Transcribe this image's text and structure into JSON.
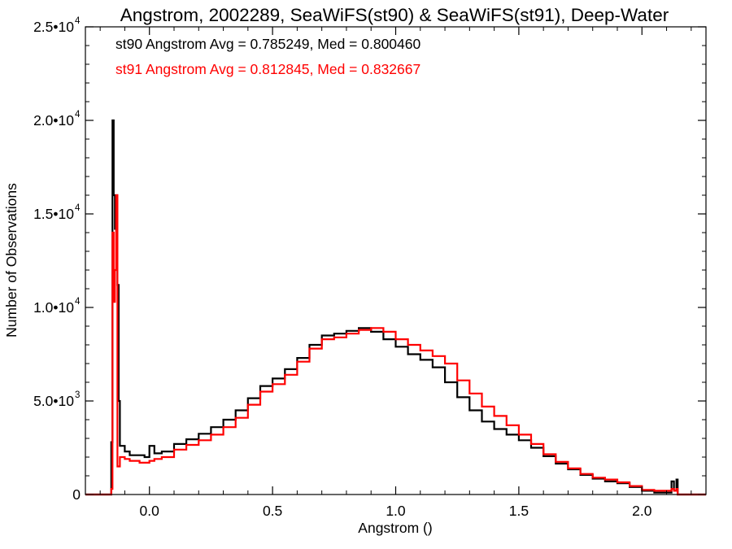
{
  "chart_data": {
    "type": "histogram",
    "title": "Angstrom, 2002289, SeaWiFS(st90) & SeaWiFS(st91), Deep-Water",
    "xlabel": "Angstrom ()",
    "ylabel": "Number of Observations",
    "xlim": [
      -0.26,
      2.26
    ],
    "ylim": [
      0,
      25000
    ],
    "x_ticks": [
      {
        "value": 0.0,
        "label": "0.0"
      },
      {
        "value": 0.5,
        "label": "0.5"
      },
      {
        "value": 1.0,
        "label": "1.0"
      },
      {
        "value": 1.5,
        "label": "1.5"
      },
      {
        "value": 2.0,
        "label": "2.0"
      }
    ],
    "y_ticks": [
      {
        "value": 0,
        "mant": "0",
        "exp": ""
      },
      {
        "value": 5000,
        "mant": "5.0•10",
        "exp": "3"
      },
      {
        "value": 10000,
        "mant": "1.0•10",
        "exp": "4"
      },
      {
        "value": 15000,
        "mant": "1.5•10",
        "exp": "4"
      },
      {
        "value": 20000,
        "mant": "2.0•10",
        "exp": "4"
      },
      {
        "value": 25000,
        "mant": "2.5•10",
        "exp": "4"
      }
    ],
    "x_minor_step": 0.1,
    "y_minor_step": 1000,
    "annotations": [
      {
        "text": "st90 Angstrom Avg = 0.785249, Med = 0.800460",
        "color": "#000000"
      },
      {
        "text": "st91 Angstrom Avg = 0.812845, Med = 0.832667",
        "color": "#ff0000"
      }
    ],
    "series": [
      {
        "color": "#000000",
        "points": [
          [
            -0.26,
            0
          ],
          [
            -0.16,
            0
          ],
          [
            -0.155,
            2800
          ],
          [
            -0.15,
            20000
          ],
          [
            -0.145,
            16000
          ],
          [
            -0.14,
            14200
          ],
          [
            -0.135,
            16000
          ],
          [
            -0.13,
            11200
          ],
          [
            -0.125,
            5000
          ],
          [
            -0.12,
            2600
          ],
          [
            -0.1,
            2300
          ],
          [
            -0.08,
            2100
          ],
          [
            -0.04,
            2100
          ],
          [
            -0.02,
            2000
          ],
          [
            0.0,
            2600
          ],
          [
            0.02,
            2200
          ],
          [
            0.05,
            2300
          ],
          [
            0.1,
            2700
          ],
          [
            0.15,
            2950
          ],
          [
            0.2,
            3250
          ],
          [
            0.25,
            3600
          ],
          [
            0.3,
            4000
          ],
          [
            0.35,
            4500
          ],
          [
            0.4,
            5150
          ],
          [
            0.45,
            5800
          ],
          [
            0.5,
            6200
          ],
          [
            0.55,
            6700
          ],
          [
            0.6,
            7300
          ],
          [
            0.65,
            8000
          ],
          [
            0.7,
            8500
          ],
          [
            0.75,
            8600
          ],
          [
            0.8,
            8750
          ],
          [
            0.85,
            8900
          ],
          [
            0.9,
            8700
          ],
          [
            0.95,
            8300
          ],
          [
            1.0,
            7900
          ],
          [
            1.05,
            7500
          ],
          [
            1.1,
            7200
          ],
          [
            1.15,
            6800
          ],
          [
            1.2,
            6000
          ],
          [
            1.25,
            5200
          ],
          [
            1.3,
            4500
          ],
          [
            1.35,
            3900
          ],
          [
            1.4,
            3500
          ],
          [
            1.45,
            3200
          ],
          [
            1.5,
            2900
          ],
          [
            1.55,
            2500
          ],
          [
            1.6,
            2050
          ],
          [
            1.65,
            1650
          ],
          [
            1.7,
            1350
          ],
          [
            1.75,
            1050
          ],
          [
            1.8,
            850
          ],
          [
            1.85,
            700
          ],
          [
            1.9,
            600
          ],
          [
            1.95,
            400
          ],
          [
            2.0,
            200
          ],
          [
            2.05,
            100
          ],
          [
            2.1,
            100
          ],
          [
            2.12,
            700
          ],
          [
            2.13,
            200
          ],
          [
            2.14,
            800
          ],
          [
            2.145,
            0
          ],
          [
            2.26,
            0
          ]
        ]
      },
      {
        "color": "#ff0000",
        "points": [
          [
            -0.26,
            0
          ],
          [
            -0.16,
            0
          ],
          [
            -0.155,
            300
          ],
          [
            -0.15,
            14000
          ],
          [
            -0.145,
            10300
          ],
          [
            -0.14,
            12000
          ],
          [
            -0.135,
            16000
          ],
          [
            -0.13,
            1500
          ],
          [
            -0.12,
            2000
          ],
          [
            -0.1,
            1900
          ],
          [
            -0.08,
            1800
          ],
          [
            -0.04,
            1700
          ],
          [
            -0.02,
            1700
          ],
          [
            0.0,
            1800
          ],
          [
            0.02,
            1900
          ],
          [
            0.05,
            2000
          ],
          [
            0.1,
            2400
          ],
          [
            0.15,
            2650
          ],
          [
            0.2,
            2900
          ],
          [
            0.25,
            3200
          ],
          [
            0.3,
            3600
          ],
          [
            0.35,
            4100
          ],
          [
            0.4,
            4800
          ],
          [
            0.45,
            5500
          ],
          [
            0.5,
            5900
          ],
          [
            0.55,
            6400
          ],
          [
            0.6,
            7100
          ],
          [
            0.65,
            7800
          ],
          [
            0.7,
            8300
          ],
          [
            0.75,
            8400
          ],
          [
            0.8,
            8600
          ],
          [
            0.85,
            8800
          ],
          [
            0.9,
            8900
          ],
          [
            0.95,
            8700
          ],
          [
            1.0,
            8300
          ],
          [
            1.05,
            8000
          ],
          [
            1.1,
            7700
          ],
          [
            1.15,
            7400
          ],
          [
            1.2,
            7000
          ],
          [
            1.25,
            6100
          ],
          [
            1.3,
            5400
          ],
          [
            1.35,
            4700
          ],
          [
            1.4,
            4200
          ],
          [
            1.45,
            3700
          ],
          [
            1.5,
            3200
          ],
          [
            1.55,
            2700
          ],
          [
            1.6,
            2150
          ],
          [
            1.65,
            1750
          ],
          [
            1.7,
            1400
          ],
          [
            1.75,
            1100
          ],
          [
            1.8,
            900
          ],
          [
            1.85,
            800
          ],
          [
            1.9,
            650
          ],
          [
            1.95,
            450
          ],
          [
            2.0,
            250
          ],
          [
            2.05,
            200
          ],
          [
            2.1,
            200
          ],
          [
            2.12,
            300
          ],
          [
            2.13,
            200
          ],
          [
            2.14,
            300
          ],
          [
            2.145,
            0
          ],
          [
            2.26,
            0
          ]
        ]
      }
    ]
  }
}
